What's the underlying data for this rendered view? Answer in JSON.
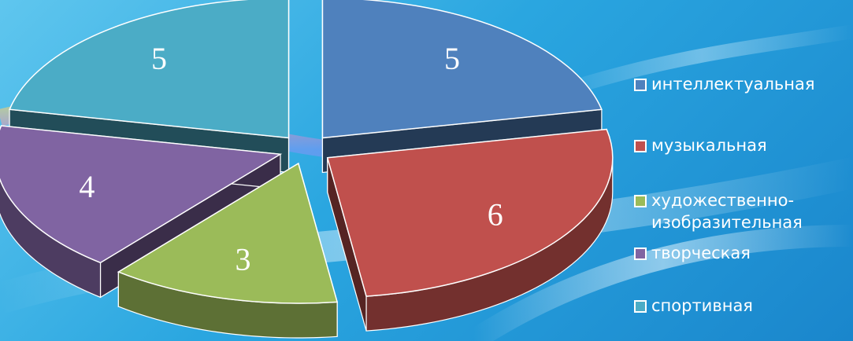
{
  "chart_data": {
    "type": "pie",
    "style": "exploded-3d",
    "slices": [
      {
        "label": "интеллектуальная",
        "value": 5,
        "color": "#4f81bd"
      },
      {
        "label": "музыкальная",
        "value": 6,
        "color": "#c0504d"
      },
      {
        "label": "художественно-\nизобразительная",
        "value": 3,
        "color": "#9bbb59"
      },
      {
        "label": "творческая",
        "value": 4,
        "color": "#8064a2"
      },
      {
        "label": "спортивная",
        "value": 5,
        "color": "#4bacc6"
      }
    ],
    "legend": "right",
    "data_labels": true
  }
}
